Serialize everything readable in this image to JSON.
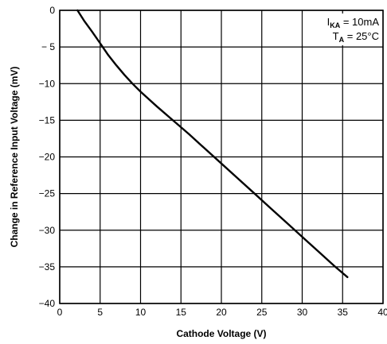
{
  "chart_data": {
    "type": "line",
    "xlabel": "Cathode Voltage (V)",
    "ylabel": "Change in Reference Input Voltage (mV)",
    "xlim": [
      0,
      40
    ],
    "ylim": [
      -40,
      0
    ],
    "x_ticks": [
      0,
      5,
      10,
      15,
      20,
      25,
      30,
      35,
      40
    ],
    "y_ticks": [
      0,
      -5,
      -10,
      -15,
      -20,
      -25,
      -30,
      -35,
      -40
    ],
    "x_tick_labels": [
      "0",
      "5",
      "10",
      "15",
      "20",
      "25",
      "30",
      "35",
      "40"
    ],
    "y_tick_labels": [
      "0",
      "− 5",
      "−10",
      "−15",
      "−20",
      "−25",
      "−30",
      "−35",
      "−40"
    ],
    "grid": true,
    "annotation": {
      "line1_symbol": "I",
      "line1_subscript": "KA",
      "line1_value": " = 10mA",
      "line2_symbol": "T",
      "line2_subscript": "A",
      "line2_value": " = 25°C"
    },
    "series": [
      {
        "x": [
          2.2,
          3,
          4,
          5,
          6,
          7,
          8,
          9,
          10,
          12,
          14,
          16,
          18,
          20,
          22,
          24,
          26,
          28,
          30,
          32,
          34,
          35.6
        ],
        "y": [
          0,
          -1.4,
          -2.9,
          -4.5,
          -6.1,
          -7.5,
          -8.8,
          -10.0,
          -11.1,
          -13.1,
          -15.0,
          -16.9,
          -18.9,
          -20.9,
          -22.9,
          -24.9,
          -26.9,
          -28.9,
          -30.9,
          -32.9,
          -34.9,
          -36.4
        ]
      }
    ]
  }
}
